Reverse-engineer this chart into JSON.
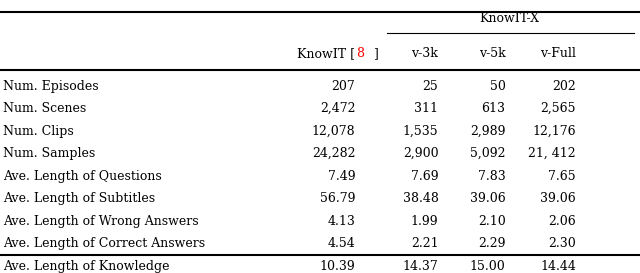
{
  "rows": [
    [
      "Num. Episodes",
      "207",
      "25",
      "50",
      "202"
    ],
    [
      "Num. Scenes",
      "2,472",
      "311",
      "613",
      "2,565"
    ],
    [
      "Num. Clips",
      "12,078",
      "1,535",
      "2,989",
      "12,176"
    ],
    [
      "Num. Samples",
      "24,282",
      "2,900",
      "5,092",
      "21, 412"
    ],
    [
      "Ave. Length of Questions",
      "7.49",
      "7.69",
      "7.83",
      "7.65"
    ],
    [
      "Ave. Length of Subtitles",
      "56.79",
      "38.48",
      "39.06",
      "39.06"
    ],
    [
      "Ave. Length of Wrong Answers",
      "4.13",
      "1.99",
      "2.10",
      "2.06"
    ],
    [
      "Ave. Length of Correct Answers",
      "4.54",
      "2.21",
      "2.29",
      "2.30"
    ],
    [
      "Ave. Length of Knowledge",
      "10.39",
      "14.37",
      "15.00",
      "14.44"
    ]
  ],
  "col1_header": "KnowIT [8]",
  "group_header": "KnowIT-X",
  "sub_headers": [
    "v-3k",
    "v-5k",
    "v-Full"
  ],
  "ref_number_color": "#ff0000",
  "background_color": "#ffffff"
}
